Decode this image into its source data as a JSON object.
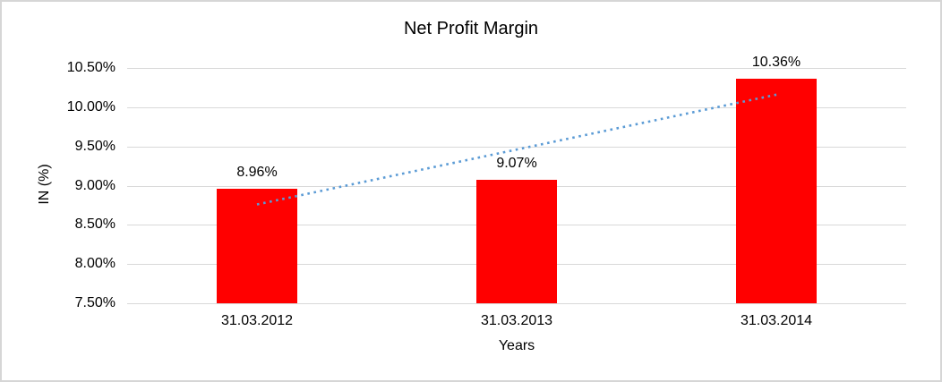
{
  "chart_data": {
    "type": "bar",
    "title": "Net Profit Margin",
    "xlabel": "Years",
    "ylabel": "IN (%)",
    "categories": [
      "31.03.2012",
      "31.03.2013",
      "31.03.2014"
    ],
    "values": [
      8.96,
      9.07,
      10.36
    ],
    "data_labels": [
      "8.96%",
      "9.07%",
      "10.36%"
    ],
    "ylim": [
      7.5,
      10.5
    ],
    "y_axis": {
      "tick_values": [
        10.5,
        10.0,
        9.5,
        9.0,
        8.5,
        8.0,
        7.5
      ],
      "tick_labels": [
        "10.50%",
        "10.00%",
        "9.50%",
        "9.00%",
        "8.50%",
        "8.00%",
        "7.50%"
      ]
    },
    "grid": true,
    "legend": "none",
    "trendline": {
      "type": "linear",
      "style": "dotted",
      "start_value": 8.76,
      "end_value": 10.16
    },
    "colors": {
      "bar": "#ff0000",
      "gridline": "#d9d9d9",
      "trendline": "#5b9bd5",
      "text": "#000000",
      "frame_border": "#d6d6d6"
    }
  }
}
